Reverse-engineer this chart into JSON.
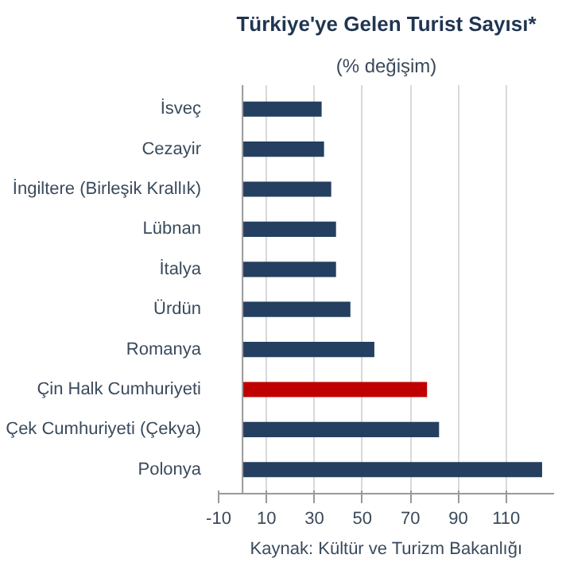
{
  "chart_data": {
    "type": "bar",
    "orientation": "horizontal",
    "title": "Türkiye'ye Gelen Turist Sayısı*",
    "subtitle": "(% değişim)",
    "categories": [
      "İsveç",
      "Cezayir",
      "İngiltere (Birleşik Krallık)",
      "Lübnan",
      "İtalya",
      "Ürdün",
      "Romanya",
      "Çin Halk Cumhuriyeti",
      "Çek Cumhuriyeti (Çekya)",
      "Polonya"
    ],
    "values": [
      33,
      34,
      37,
      39,
      39,
      45,
      55,
      77,
      82,
      125
    ],
    "colors": [
      "#243f60",
      "#243f60",
      "#243f60",
      "#243f60",
      "#243f60",
      "#243f60",
      "#243f60",
      "#c00000",
      "#243f60",
      "#243f60"
    ],
    "xlim": [
      -10,
      130
    ],
    "xticks": [
      -10,
      10,
      30,
      50,
      70,
      90,
      110
    ],
    "grid": "x",
    "annotations": [
      "Kaynak: Kültür ve Turizm Bakanlığı"
    ]
  }
}
